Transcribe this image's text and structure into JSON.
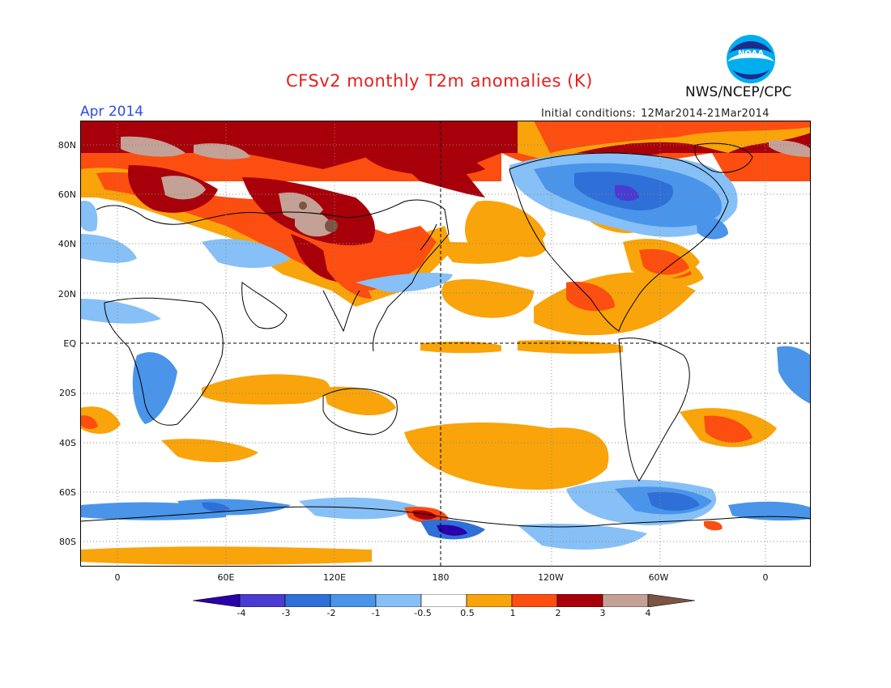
{
  "title": "CFSv2 monthly T2m anomalies (K)",
  "agency": "NWS/NCEP/CPC",
  "logo_text": "NOAA",
  "forecast_month": "Apr 2014",
  "initial_conditions": {
    "label": "Initial conditions:",
    "value": "12Mar2014-21Mar2014"
  },
  "y_axis_labels": [
    "80N",
    "60N",
    "40N",
    "20N",
    "EQ",
    "20S",
    "40S",
    "60S",
    "80S"
  ],
  "x_axis_labels": [
    "0",
    "60E",
    "120E",
    "180",
    "120W",
    "60W",
    "0"
  ],
  "colorbar": {
    "tick_labels": [
      "-4",
      "-3",
      "-2",
      "-1",
      "-0.5",
      "0.5",
      "1",
      "2",
      "3",
      "4"
    ],
    "colors": [
      "#2a00a8",
      "#4a3cd0",
      "#2f6fd8",
      "#4a95ea",
      "#86c0f6",
      "#ffffff",
      "#f8a40a",
      "#fb4e10",
      "#a8000a",
      "#c4a196",
      "#7b5444"
    ]
  },
  "colors": {
    "title": "#e8201c",
    "month": "#2a4ee8",
    "land_outline": "#000000"
  }
}
